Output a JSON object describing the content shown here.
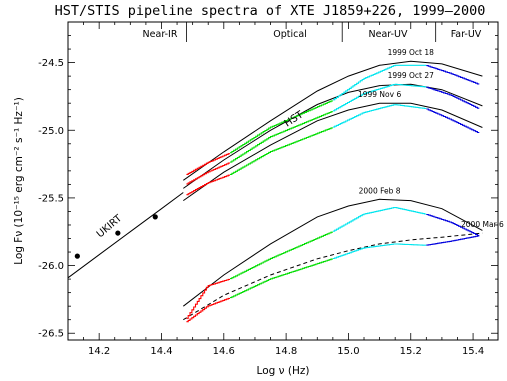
{
  "chart_data": {
    "type": "line",
    "title": "HST/STIS pipeline spectra of XTE J1859+226, 1999–2000",
    "xlabel": "Log ν (Hz)",
    "ylabel": "Log Fν (10⁻¹⁵ erg cm⁻² s⁻¹ Hz⁻¹)",
    "xlim": [
      14.1,
      15.48
    ],
    "ylim": [
      -26.55,
      -24.2
    ],
    "xticks": [
      "14.2",
      "14.4",
      "14.6",
      "14.8",
      "15.0",
      "15.2",
      "15.4"
    ],
    "yticks": [
      "-24.5",
      "-25.0",
      "-25.5",
      "-26.0",
      "-26.5"
    ],
    "regions": [
      "Near-IR",
      "Optical",
      "Near-UV",
      "Far-UV"
    ],
    "region_bounds": [
      14.48,
      14.98,
      15.28
    ],
    "annotations": [
      "HST",
      "UKIRT"
    ],
    "ukirt_points": [
      {
        "x": 14.13,
        "y": -25.93
      },
      {
        "x": 14.26,
        "y": -25.76
      },
      {
        "x": 14.38,
        "y": -25.64
      }
    ],
    "series": [
      {
        "name": "1999 Oct 18",
        "segments": [
          {
            "color": "#ff0000",
            "x": [
              14.48,
              14.55,
              14.62
            ],
            "y": [
              -25.33,
              -25.24,
              -25.17
            ]
          },
          {
            "color": "#00dd00",
            "x": [
              14.62,
              14.75,
              14.95
            ],
            "y": [
              -25.17,
              -24.98,
              -24.78
            ]
          },
          {
            "color": "#00e5ee",
            "x": [
              14.95,
              15.05,
              15.15,
              15.25
            ],
            "y": [
              -24.78,
              -24.62,
              -24.52,
              -24.52
            ]
          },
          {
            "color": "#0000dd",
            "x": [
              15.25,
              15.33,
              15.42
            ],
            "y": [
              -24.52,
              -24.58,
              -24.66
            ]
          }
        ],
        "model_x": [
          14.47,
          14.6,
          14.75,
          14.9,
          15.0,
          15.1,
          15.2,
          15.3,
          15.43
        ],
        "model_y": [
          -25.37,
          -25.16,
          -24.93,
          -24.71,
          -24.6,
          -24.52,
          -24.49,
          -24.51,
          -24.6
        ]
      },
      {
        "name": "1999 Oct 27",
        "segments": [
          {
            "color": "#ff0000",
            "x": [
              14.48,
              14.55,
              14.62
            ],
            "y": [
              -25.4,
              -25.31,
              -25.24
            ]
          },
          {
            "color": "#00dd00",
            "x": [
              14.62,
              14.75,
              14.95
            ],
            "y": [
              -25.24,
              -25.05,
              -24.86
            ]
          },
          {
            "color": "#00e5ee",
            "x": [
              14.95,
              15.05,
              15.15,
              15.25
            ],
            "y": [
              -24.86,
              -24.73,
              -24.66,
              -24.68
            ]
          },
          {
            "color": "#0000dd",
            "x": [
              15.25,
              15.33,
              15.42
            ],
            "y": [
              -24.68,
              -24.74,
              -24.84
            ]
          }
        ],
        "model_x": [
          14.47,
          14.6,
          14.75,
          14.9,
          15.0,
          15.1,
          15.2,
          15.3,
          15.43
        ],
        "model_y": [
          -25.43,
          -25.22,
          -25.0,
          -24.81,
          -24.72,
          -24.67,
          -24.66,
          -24.7,
          -24.82
        ]
      },
      {
        "name": "1999 Nov 6",
        "segments": [
          {
            "color": "#ff0000",
            "x": [
              14.48,
              14.55,
              14.62
            ],
            "y": [
              -25.48,
              -25.39,
              -25.33
            ]
          },
          {
            "color": "#00dd00",
            "x": [
              14.62,
              14.75,
              14.95
            ],
            "y": [
              -25.33,
              -25.16,
              -24.98
            ]
          },
          {
            "color": "#00e5ee",
            "x": [
              14.95,
              15.05,
              15.15,
              15.25
            ],
            "y": [
              -24.98,
              -24.87,
              -24.81,
              -24.84
            ]
          },
          {
            "color": "#0000dd",
            "x": [
              15.25,
              15.33,
              15.42
            ],
            "y": [
              -24.84,
              -24.92,
              -25.02
            ]
          }
        ],
        "model_x": [
          14.47,
          14.6,
          14.75,
          14.9,
          15.0,
          15.1,
          15.2,
          15.3,
          15.43
        ],
        "model_y": [
          -25.52,
          -25.31,
          -25.11,
          -24.93,
          -24.85,
          -24.8,
          -24.8,
          -24.85,
          -24.98
        ]
      },
      {
        "name": "2000 Feb 8",
        "segments": [
          {
            "color": "#ff0000",
            "x": [
              14.48,
              14.55,
              14.62
            ],
            "y": [
              -26.4,
              -26.15,
              -26.1
            ]
          },
          {
            "color": "#00dd00",
            "x": [
              14.62,
              14.75,
              14.95
            ],
            "y": [
              -26.1,
              -25.95,
              -25.75
            ]
          },
          {
            "color": "#00e5ee",
            "x": [
              14.95,
              15.05,
              15.15,
              15.25
            ],
            "y": [
              -25.75,
              -25.62,
              -25.57,
              -25.62
            ]
          },
          {
            "color": "#0000dd",
            "x": [
              15.25,
              15.33,
              15.42
            ],
            "y": [
              -25.62,
              -25.68,
              -25.78
            ]
          }
        ],
        "model_x": [
          14.47,
          14.6,
          14.75,
          14.9,
          15.0,
          15.1,
          15.2,
          15.3,
          15.43
        ],
        "model_y": [
          -26.3,
          -26.07,
          -25.84,
          -25.64,
          -25.56,
          -25.51,
          -25.52,
          -25.58,
          -25.74
        ]
      },
      {
        "name": "2000 Mar 6",
        "segments": [
          {
            "color": "#ff0000",
            "x": [
              14.48,
              14.55,
              14.62
            ],
            "y": [
              -26.42,
              -26.3,
              -26.24
            ]
          },
          {
            "color": "#00dd00",
            "x": [
              14.62,
              14.75,
              14.95
            ],
            "y": [
              -26.24,
              -26.1,
              -25.95
            ]
          },
          {
            "color": "#00e5ee",
            "x": [
              14.95,
              15.05,
              15.15,
              15.25
            ],
            "y": [
              -25.95,
              -25.87,
              -25.84,
              -25.85
            ]
          },
          {
            "color": "#0000dd",
            "x": [
              15.25,
              15.33,
              15.42
            ],
            "y": [
              -25.85,
              -25.82,
              -25.78
            ]
          }
        ],
        "model_x": [
          14.47,
          14.6,
          14.75,
          14.9,
          15.0,
          15.1,
          15.2,
          15.3,
          15.43
        ],
        "model_y": [
          -26.4,
          -26.22,
          -26.07,
          -25.95,
          -25.89,
          -25.84,
          -25.81,
          -25.79,
          -25.76
        ],
        "model_dashed": true
      }
    ],
    "extended_model": {
      "x": [
        14.1,
        14.2,
        14.3,
        14.4,
        14.47
      ],
      "y": [
        -26.09,
        -25.92,
        -25.75,
        -25.58,
        -25.46
      ]
    },
    "grid": false,
    "legend": "none"
  }
}
